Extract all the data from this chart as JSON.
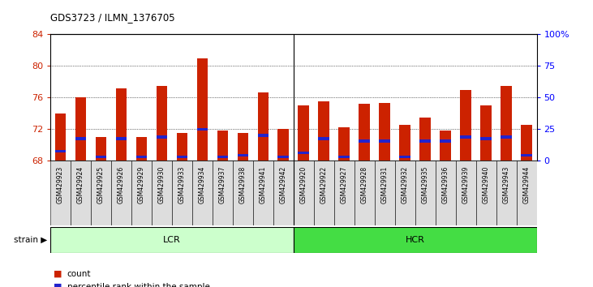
{
  "title": "GDS3723 / ILMN_1376705",
  "samples": [
    "GSM429923",
    "GSM429924",
    "GSM429925",
    "GSM429926",
    "GSM429929",
    "GSM429930",
    "GSM429933",
    "GSM429934",
    "GSM429937",
    "GSM429938",
    "GSM429941",
    "GSM429942",
    "GSM429920",
    "GSM429922",
    "GSM429927",
    "GSM429928",
    "GSM429931",
    "GSM429932",
    "GSM429935",
    "GSM429936",
    "GSM429939",
    "GSM429940",
    "GSM429943",
    "GSM429944"
  ],
  "count_values": [
    74.0,
    76.0,
    71.0,
    77.2,
    71.0,
    77.5,
    71.5,
    81.0,
    71.8,
    71.5,
    76.7,
    72.0,
    75.0,
    75.5,
    72.2,
    75.2,
    75.3,
    72.5,
    73.5,
    71.8,
    77.0,
    75.0,
    77.5,
    72.5
  ],
  "percentile_values": [
    69.2,
    70.8,
    68.5,
    70.8,
    68.5,
    71.0,
    68.5,
    72.0,
    68.5,
    68.7,
    71.2,
    68.5,
    69.0,
    70.8,
    68.5,
    70.5,
    70.5,
    68.5,
    70.5,
    70.5,
    71.0,
    70.8,
    71.0,
    68.7
  ],
  "lcr_count": 12,
  "hcr_count": 12,
  "ymin": 68,
  "ymax": 84,
  "yticks_left": [
    68,
    72,
    76,
    80,
    84
  ],
  "yticks_right": [
    0,
    25,
    50,
    75,
    100
  ],
  "grid_lines": [
    72,
    76,
    80
  ],
  "bar_color": "#cc2200",
  "dot_color": "#2222cc",
  "lcr_color_light": "#ccffcc",
  "lcr_color_dark": "#44dd44",
  "tick_bg_color": "#dddddd",
  "legend_count": "count",
  "legend_percentile": "percentile rank within the sample"
}
